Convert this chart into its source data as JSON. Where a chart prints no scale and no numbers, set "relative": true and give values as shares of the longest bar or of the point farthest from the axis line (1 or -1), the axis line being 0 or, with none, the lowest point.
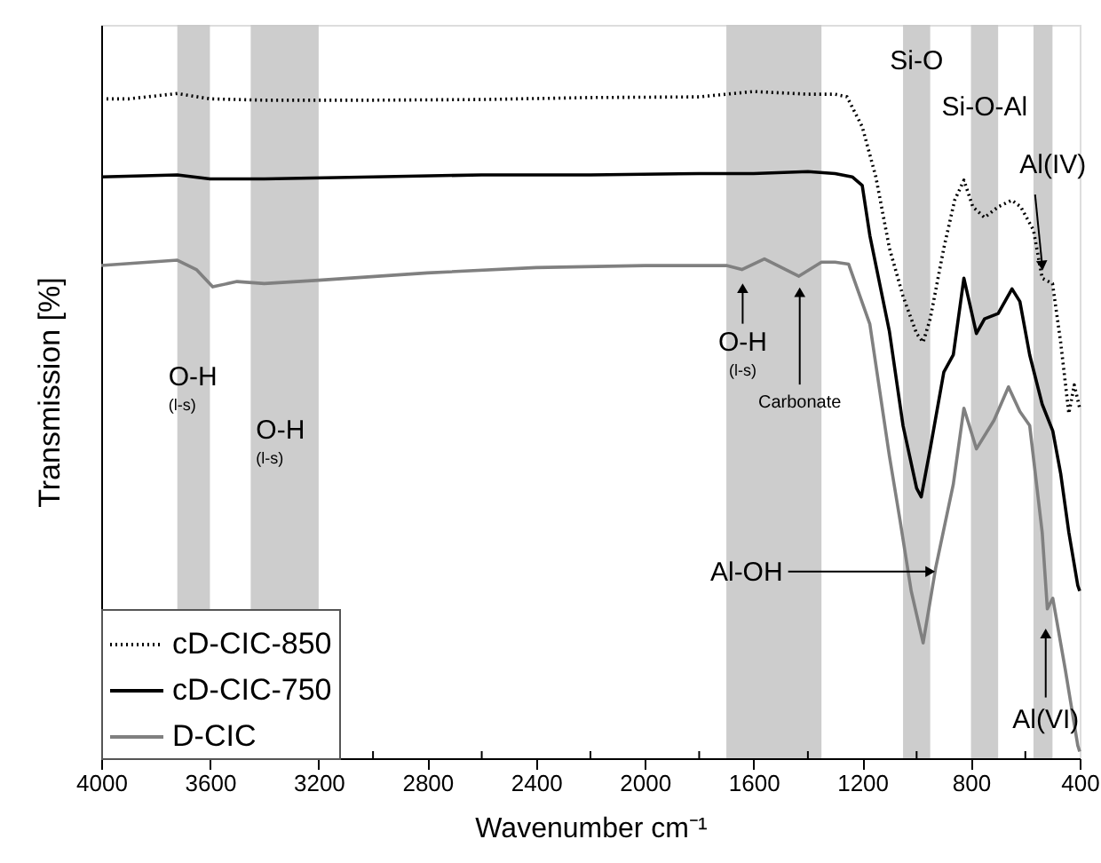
{
  "chart_data": {
    "type": "line",
    "relative": true,
    "xlabel": "Wavenumber cm⁻¹",
    "ylabel": "Transmission [%]",
    "xlim": [
      4000,
      400
    ],
    "xticks": [
      4000,
      {
        "value": 3800,
        "label": null
      },
      3600,
      {
        "value": 3400,
        "label": null
      },
      3200,
      {
        "value": 3000,
        "label": null
      },
      2800,
      {
        "value": 2600,
        "label": null
      },
      2400,
      {
        "value": 2200,
        "label": null
      },
      2000,
      {
        "value": 1800,
        "label": null
      },
      1600,
      {
        "value": 1400,
        "label": null
      },
      1200,
      {
        "value": 1000,
        "label": null
      },
      800,
      {
        "value": 600,
        "label": null
      },
      400
    ],
    "grid": false,
    "legend": "bottom left",
    "tick_labels": "x",
    "series": [
      {
        "name": "cD-CIC-850",
        "color": "#000000",
        "line_style": "dotted",
        "x": [
          4000,
          3900,
          3720,
          3600,
          3400,
          3000,
          2600,
          2200,
          1800,
          1600,
          1400,
          1300,
          1256,
          1200,
          1150,
          1100,
          1050,
          1000,
          976,
          950,
          900,
          860,
          826,
          793,
          750,
          700,
          650,
          617,
          570,
          538,
          500,
          470,
          440,
          420,
          400
        ],
        "values": [
          0.989,
          0.989,
          0.997,
          0.989,
          0.987,
          0.987,
          0.988,
          0.991,
          0.992,
          1.0,
          0.996,
          0.996,
          0.992,
          0.947,
          0.872,
          0.765,
          0.693,
          0.637,
          0.624,
          0.659,
          0.765,
          0.837,
          0.867,
          0.827,
          0.811,
          0.827,
          0.837,
          0.827,
          0.792,
          0.72,
          0.712,
          0.624,
          0.517,
          0.56,
          0.525
        ]
      },
      {
        "name": "cD-CIC-750",
        "color": "#000000",
        "line_style": "solid",
        "x": [
          4000,
          3720,
          3600,
          3400,
          3000,
          2600,
          2200,
          1800,
          1600,
          1400,
          1300,
          1237,
          1200,
          1172,
          1100,
          1050,
          1000,
          983,
          950,
          900,
          865,
          826,
          780,
          750,
          700,
          649,
          620,
          584,
          538,
          499,
          470,
          440,
          407,
          400
        ],
        "values": [
          0.872,
          0.875,
          0.869,
          0.869,
          0.872,
          0.875,
          0.875,
          0.877,
          0.877,
          0.88,
          0.877,
          0.872,
          0.859,
          0.784,
          0.64,
          0.499,
          0.405,
          0.392,
          0.464,
          0.579,
          0.605,
          0.72,
          0.637,
          0.659,
          0.667,
          0.704,
          0.685,
          0.605,
          0.531,
          0.491,
          0.427,
          0.339,
          0.259,
          0.251
        ]
      },
      {
        "name": "D-CIC",
        "color": "#808080",
        "line_style": "solid",
        "x": [
          4000,
          3720,
          3650,
          3590,
          3500,
          3400,
          3200,
          2800,
          2400,
          2000,
          1700,
          1643,
          1560,
          1433,
          1350,
          1300,
          1250,
          1172,
          1100,
          1061,
          1020,
          976,
          930,
          865,
          826,
          780,
          715,
          662,
          620,
          584,
          538,
          519,
          499,
          453,
          407,
          400
        ],
        "values": [
          0.739,
          0.747,
          0.733,
          0.707,
          0.715,
          0.712,
          0.717,
          0.728,
          0.736,
          0.739,
          0.739,
          0.733,
          0.749,
          0.723,
          0.744,
          0.744,
          0.741,
          0.651,
          0.453,
          0.357,
          0.251,
          0.173,
          0.285,
          0.411,
          0.525,
          0.464,
          0.507,
          0.557,
          0.52,
          0.499,
          0.339,
          0.224,
          0.24,
          0.133,
          0.019,
          0.01
        ]
      }
    ],
    "bands": [
      {
        "axis": "x",
        "from": 3720,
        "to": 3600,
        "label": "O-H (l-s)",
        "color": "#c8c8c8"
      },
      {
        "axis": "x",
        "from": 3450,
        "to": 3200,
        "label": "O-H (l-s)",
        "color": "#c8c8c8"
      },
      {
        "axis": "x",
        "from": 1700,
        "to": 1350,
        "color": "#c8c8c8"
      },
      {
        "axis": "x",
        "from": 1050,
        "to": 950,
        "label": "Si-O",
        "color": "#c8c8c8"
      },
      {
        "axis": "x",
        "from": 800,
        "to": 700,
        "label": "Si-O-Al",
        "color": "#c8c8c8"
      },
      {
        "axis": "x",
        "from": 570,
        "to": 500,
        "color": "#c8c8c8"
      }
    ],
    "annotations": [
      {
        "text": "O-H (l-s)",
        "x": 1640,
        "y": 0.705
      },
      {
        "text": "Carbonate",
        "x": 1430,
        "y": 0.699
      },
      {
        "text": "Al-OH",
        "x": 950,
        "y": 0.28
      },
      {
        "text": "Al(IV)",
        "x": 538,
        "y": 0.739
      },
      {
        "text": "Al(VI)",
        "x": 525,
        "y": 0.187
      }
    ]
  }
}
